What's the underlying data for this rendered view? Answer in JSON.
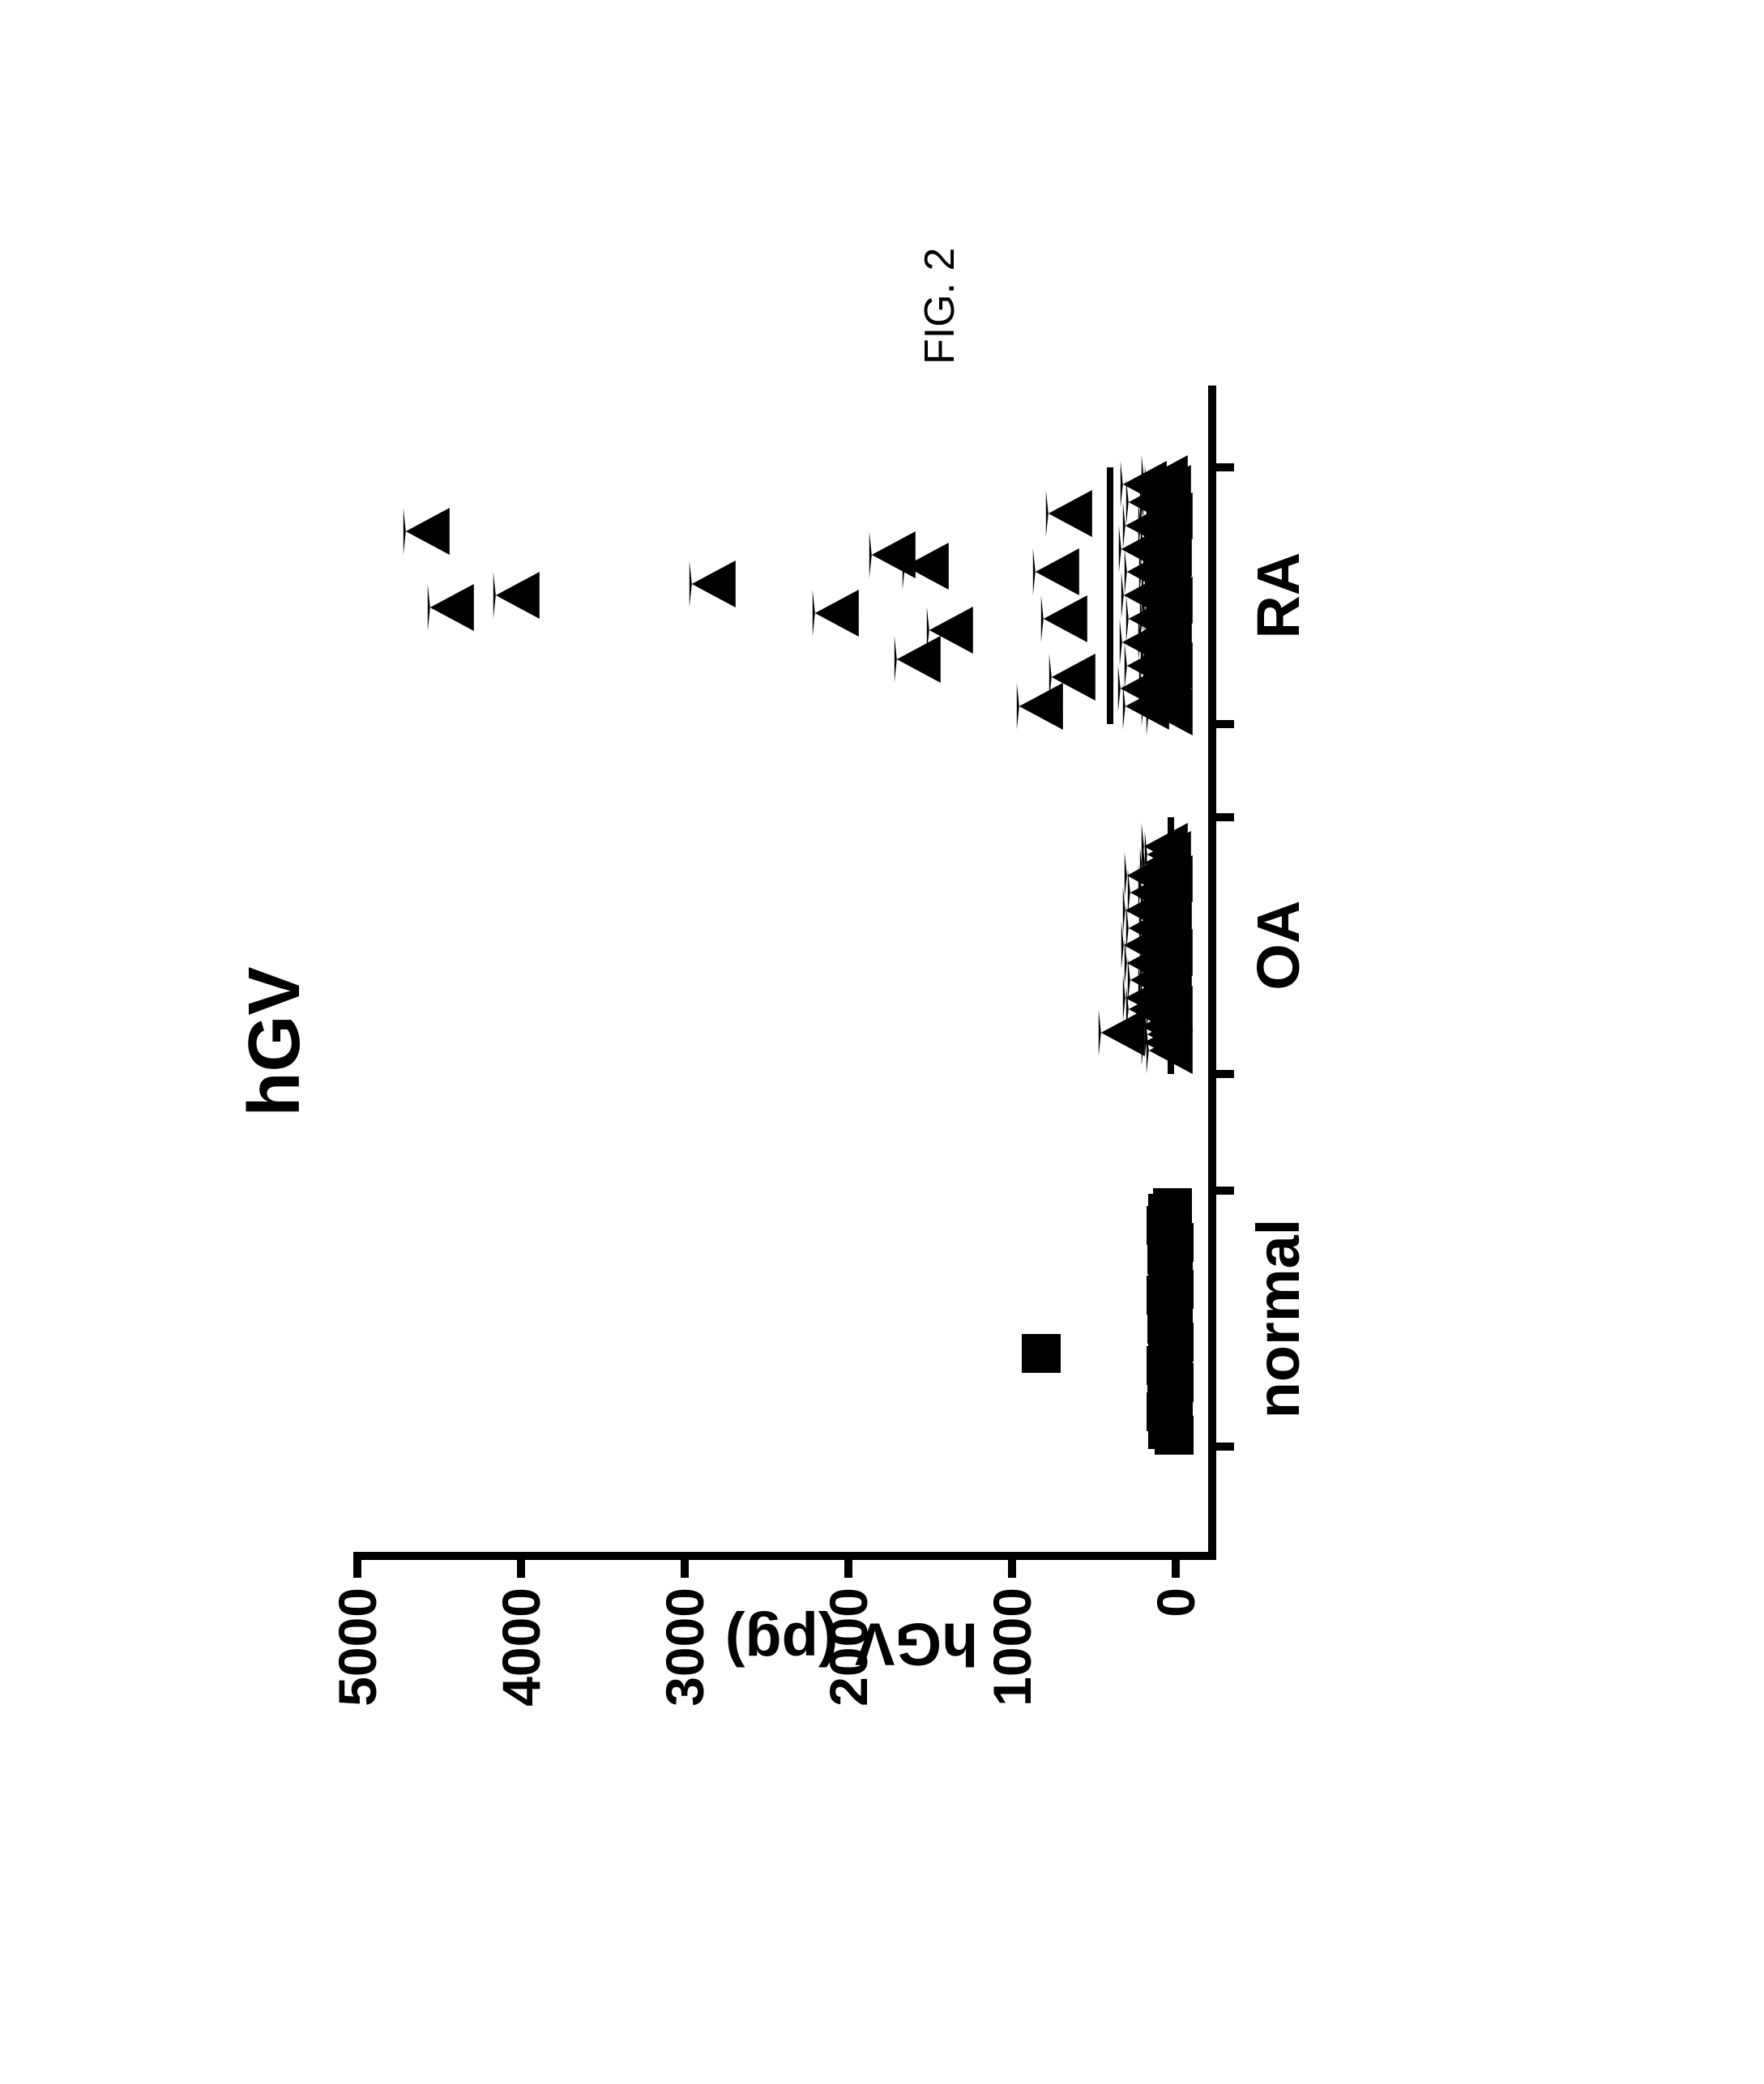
{
  "figure_number": "FIG. 2",
  "chart": {
    "type": "scatter-strip",
    "title": "hGV",
    "ylabel": "hGV (pg)",
    "title_fontsize": 90,
    "label_fontsize": 74,
    "tick_fontsize": 66,
    "axis_line_width": 10,
    "axis_color": "#000000",
    "background_color": "#ffffff",
    "marker_color": "#000000",
    "ylim": [
      -200,
      5000
    ],
    "yticks": [
      0,
      1000,
      2000,
      3000,
      4000,
      5000
    ],
    "categories": [
      "normal",
      "OA",
      "RA"
    ],
    "category_centers": [
      0.2,
      0.52,
      0.82
    ],
    "group_halfwidth": 0.11,
    "medians": {
      "normal": 30,
      "OA": 30,
      "RA": 400
    },
    "markers": {
      "normal": {
        "shape": "square",
        "size": 48
      },
      "OA": {
        "shape": "triangle",
        "size": 54
      },
      "RA": {
        "shape": "triangle",
        "size": 54
      }
    },
    "data": {
      "normal": [
        {
          "x": -0.1,
          "y": 10
        },
        {
          "x": -0.095,
          "y": 50
        },
        {
          "x": -0.09,
          "y": 30
        },
        {
          "x": -0.085,
          "y": 15
        },
        {
          "x": -0.08,
          "y": 60
        },
        {
          "x": -0.075,
          "y": 40
        },
        {
          "x": -0.07,
          "y": 20
        },
        {
          "x": -0.065,
          "y": 55
        },
        {
          "x": -0.06,
          "y": 35
        },
        {
          "x": -0.055,
          "y": 10
        },
        {
          "x": -0.05,
          "y": 45
        },
        {
          "x": -0.045,
          "y": 25
        },
        {
          "x": -0.04,
          "y": 60
        },
        {
          "x": -0.035,
          "y": 15
        },
        {
          "x": -0.03,
          "y": 50
        },
        {
          "x": -0.025,
          "y": 30
        },
        {
          "x": -0.02,
          "y": 10
        },
        {
          "x": -0.015,
          "y": 40
        },
        {
          "x": -0.01,
          "y": 20
        },
        {
          "x": -0.005,
          "y": 55
        },
        {
          "x": 0.0,
          "y": 35
        },
        {
          "x": 0.005,
          "y": 15
        },
        {
          "x": 0.01,
          "y": 45
        },
        {
          "x": 0.015,
          "y": 25
        },
        {
          "x": 0.02,
          "y": 60
        },
        {
          "x": 0.025,
          "y": 10
        },
        {
          "x": 0.03,
          "y": 50
        },
        {
          "x": 0.035,
          "y": 30
        },
        {
          "x": 0.04,
          "y": 20
        },
        {
          "x": 0.045,
          "y": 40
        },
        {
          "x": 0.05,
          "y": 15
        },
        {
          "x": 0.055,
          "y": 55
        },
        {
          "x": 0.06,
          "y": 35
        },
        {
          "x": 0.065,
          "y": 10
        },
        {
          "x": 0.07,
          "y": 45
        },
        {
          "x": 0.075,
          "y": 25
        },
        {
          "x": 0.08,
          "y": 60
        },
        {
          "x": 0.085,
          "y": 30
        },
        {
          "x": 0.09,
          "y": 50
        },
        {
          "x": 0.095,
          "y": 20
        },
        {
          "x": -0.03,
          "y": 820
        }
      ],
      "OA": [
        {
          "x": -0.09,
          "y": 10
        },
        {
          "x": -0.083,
          "y": 40
        },
        {
          "x": -0.076,
          "y": 20
        },
        {
          "x": -0.069,
          "y": 55
        },
        {
          "x": -0.062,
          "y": 30
        },
        {
          "x": -0.055,
          "y": 10
        },
        {
          "x": -0.048,
          "y": 45
        },
        {
          "x": -0.041,
          "y": 25
        },
        {
          "x": -0.034,
          "y": 60
        },
        {
          "x": -0.027,
          "y": 15
        },
        {
          "x": -0.02,
          "y": 50
        },
        {
          "x": -0.013,
          "y": 35
        },
        {
          "x": -0.006,
          "y": 10
        },
        {
          "x": 0.001,
          "y": 40
        },
        {
          "x": 0.008,
          "y": 20
        },
        {
          "x": 0.015,
          "y": 55
        },
        {
          "x": 0.022,
          "y": 30
        },
        {
          "x": 0.029,
          "y": 15
        },
        {
          "x": 0.036,
          "y": 45
        },
        {
          "x": 0.043,
          "y": 25
        },
        {
          "x": 0.05,
          "y": 60
        },
        {
          "x": 0.057,
          "y": 10
        },
        {
          "x": 0.064,
          "y": 50
        },
        {
          "x": 0.071,
          "y": 35
        },
        {
          "x": 0.078,
          "y": 20
        },
        {
          "x": 0.085,
          "y": 40
        },
        {
          "x": -0.075,
          "y": 300
        },
        {
          "x": -0.055,
          "y": 130
        },
        {
          "x": -0.045,
          "y": 150
        },
        {
          "x": -0.03,
          "y": 120
        },
        {
          "x": -0.015,
          "y": 140
        },
        {
          "x": 0.0,
          "y": 160
        },
        {
          "x": 0.015,
          "y": 130
        },
        {
          "x": 0.03,
          "y": 150
        },
        {
          "x": 0.045,
          "y": 120
        },
        {
          "x": 0.06,
          "y": 140
        }
      ],
      "RA": [
        {
          "x": -0.1,
          "y": 10
        },
        {
          "x": -0.092,
          "y": 40
        },
        {
          "x": -0.084,
          "y": 20
        },
        {
          "x": -0.076,
          "y": 55
        },
        {
          "x": -0.068,
          "y": 30
        },
        {
          "x": -0.06,
          "y": 10
        },
        {
          "x": -0.052,
          "y": 45
        },
        {
          "x": -0.044,
          "y": 25
        },
        {
          "x": -0.036,
          "y": 60
        },
        {
          "x": -0.028,
          "y": 15
        },
        {
          "x": -0.02,
          "y": 50
        },
        {
          "x": -0.012,
          "y": 35
        },
        {
          "x": -0.004,
          "y": 10
        },
        {
          "x": 0.004,
          "y": 40
        },
        {
          "x": 0.012,
          "y": 20
        },
        {
          "x": 0.02,
          "y": 55
        },
        {
          "x": 0.028,
          "y": 30
        },
        {
          "x": 0.036,
          "y": 15
        },
        {
          "x": 0.044,
          "y": 45
        },
        {
          "x": 0.052,
          "y": 25
        },
        {
          "x": 0.06,
          "y": 60
        },
        {
          "x": 0.068,
          "y": 10
        },
        {
          "x": 0.076,
          "y": 50
        },
        {
          "x": 0.084,
          "y": 35
        },
        {
          "x": 0.092,
          "y": 20
        },
        {
          "x": 0.1,
          "y": 40
        },
        {
          "x": -0.095,
          "y": 150
        },
        {
          "x": -0.08,
          "y": 180
        },
        {
          "x": -0.06,
          "y": 140
        },
        {
          "x": -0.04,
          "y": 170
        },
        {
          "x": -0.02,
          "y": 130
        },
        {
          "x": 0.0,
          "y": 160
        },
        {
          "x": 0.02,
          "y": 140
        },
        {
          "x": 0.04,
          "y": 175
        },
        {
          "x": 0.06,
          "y": 150
        },
        {
          "x": 0.08,
          "y": 130
        },
        {
          "x": 0.095,
          "y": 165
        },
        {
          "x": -0.095,
          "y": 800
        },
        {
          "x": -0.07,
          "y": 600
        },
        {
          "x": -0.02,
          "y": 650
        },
        {
          "x": 0.02,
          "y": 700
        },
        {
          "x": 0.07,
          "y": 620
        },
        {
          "x": -0.055,
          "y": 1550
        },
        {
          "x": -0.03,
          "y": 1350
        },
        {
          "x": 0.025,
          "y": 1500
        },
        {
          "x": 0.035,
          "y": 1700
        },
        {
          "x": -0.015,
          "y": 2050
        },
        {
          "x": 0.01,
          "y": 2800
        },
        {
          "x": 0.0,
          "y": 4000
        },
        {
          "x": -0.01,
          "y": 4400
        },
        {
          "x": 0.055,
          "y": 4550
        }
      ]
    }
  }
}
